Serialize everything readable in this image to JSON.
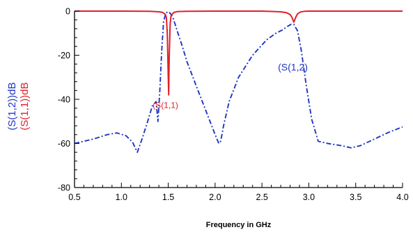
{
  "chart_data": {
    "type": "line",
    "xlabel": "Frequency in GHz",
    "ylabel_lines": [
      {
        "text": "(S(1,2))dB",
        "color": "#1f35c4"
      },
      {
        "text": "(S(1,1))dB",
        "color": "#e0202a"
      }
    ],
    "xlim": [
      0.5,
      4.0
    ],
    "ylim": [
      -80,
      0
    ],
    "xticks": [
      0.5,
      1.0,
      1.5,
      2.0,
      2.5,
      3.0,
      3.5,
      4.0
    ],
    "xtick_labels": [
      "0.5",
      "1.0",
      "1.5",
      "2.0",
      "2.5",
      "3.0",
      "3.5",
      "4.0"
    ],
    "yticks": [
      0,
      -20,
      -40,
      -60,
      -80
    ],
    "ytick_labels": [
      "0",
      "-20",
      "-40",
      "-60",
      "-80"
    ],
    "grid": false,
    "series": [
      {
        "name": "S(1,2)",
        "label": "(S(1,2)",
        "label_at": [
          2.83,
          -27
        ],
        "color": "#1f35c4",
        "style": "dashdot",
        "x": [
          0.5,
          0.7,
          0.85,
          0.95,
          1.05,
          1.12,
          1.17,
          1.22,
          1.28,
          1.33,
          1.37,
          1.39,
          1.41,
          1.43,
          1.45,
          1.47,
          1.49,
          1.51,
          1.53,
          1.55,
          1.57,
          1.6,
          1.65,
          1.7,
          1.8,
          1.9,
          2.0,
          2.04,
          2.06,
          2.09,
          2.15,
          2.25,
          2.4,
          2.55,
          2.65,
          2.72,
          2.77,
          2.81,
          2.84,
          2.88,
          2.92,
          2.97,
          3.03,
          3.1,
          3.2,
          3.35,
          3.45,
          3.55,
          3.7,
          3.85,
          4.0
        ],
        "y": [
          -60,
          -58,
          -56,
          -55.2,
          -56.5,
          -59.5,
          -64,
          -58,
          -50,
          -43,
          -41,
          -50,
          -36,
          -18,
          -5,
          -1.5,
          -0.3,
          -0.5,
          -1.5,
          -3,
          -5.5,
          -9.5,
          -16,
          -23,
          -34,
          -45,
          -56,
          -60,
          -59,
          -52,
          -41,
          -30,
          -20,
          -13,
          -10,
          -8.5,
          -7,
          -6,
          -6,
          -9,
          -18,
          -33,
          -49,
          -59,
          -60,
          -61,
          -62,
          -61,
          -58,
          -55,
          -52.5
        ]
      },
      {
        "name": "S(1,1)",
        "label": "(S(1,1)",
        "label_at": [
          1.47,
          -44
        ],
        "color": "#e0202a",
        "style": "solid",
        "x": [
          0.5,
          1.0,
          1.3,
          1.4,
          1.44,
          1.47,
          1.48,
          1.49,
          1.5,
          1.505,
          1.51,
          1.52,
          1.53,
          1.56,
          1.6,
          1.7,
          2.0,
          2.5,
          2.7,
          2.76,
          2.8,
          2.82,
          2.84,
          2.86,
          2.88,
          2.91,
          2.95,
          3.0,
          3.5,
          4.0
        ],
        "y": [
          0,
          0,
          -0.1,
          -0.3,
          -0.6,
          -1.5,
          -3,
          -10,
          -30,
          -38,
          -22,
          -6,
          -2,
          -0.6,
          -0.2,
          -0.05,
          0,
          0,
          -0.3,
          -0.7,
          -1.5,
          -2.8,
          -5,
          -2.8,
          -1.2,
          -0.4,
          -0.1,
          0,
          0,
          0
        ]
      }
    ]
  }
}
